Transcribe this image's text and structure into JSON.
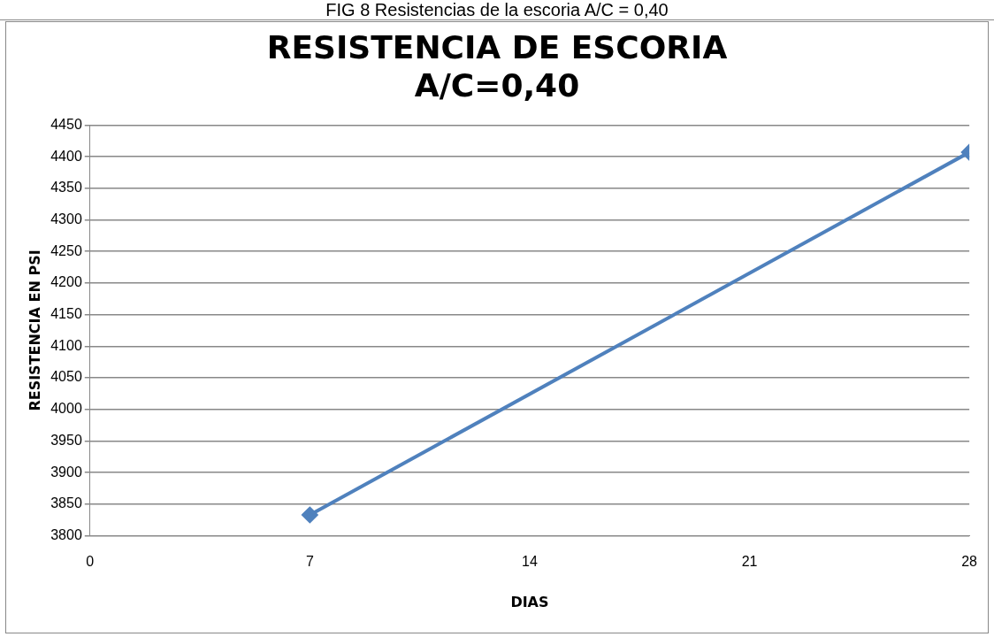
{
  "chart_data": {
    "type": "line",
    "title": "RESISTENCIA DE ESCORIA\nA/C=0,40",
    "xlabel": "DIAS",
    "ylabel": "RESISTENCIA EN PSI",
    "annotations": [
      "FIG 8 Resistencias de la escoria A/C = 0,40"
    ],
    "x": [
      7,
      28
    ],
    "series": [
      {
        "color": "#4f81bd",
        "values": [
          3833,
          4407
        ]
      }
    ],
    "xlim": [
      0,
      28
    ],
    "xticks": [
      0,
      7,
      14,
      21,
      28
    ],
    "ylim": [
      3800,
      4450
    ],
    "yticks": [
      3800,
      3850,
      3900,
      3950,
      4000,
      4050,
      4100,
      4150,
      4200,
      4250,
      4300,
      4350,
      4400,
      4450
    ],
    "grid": "y",
    "legend": false,
    "marker": "diamond",
    "line_style": "solid"
  }
}
